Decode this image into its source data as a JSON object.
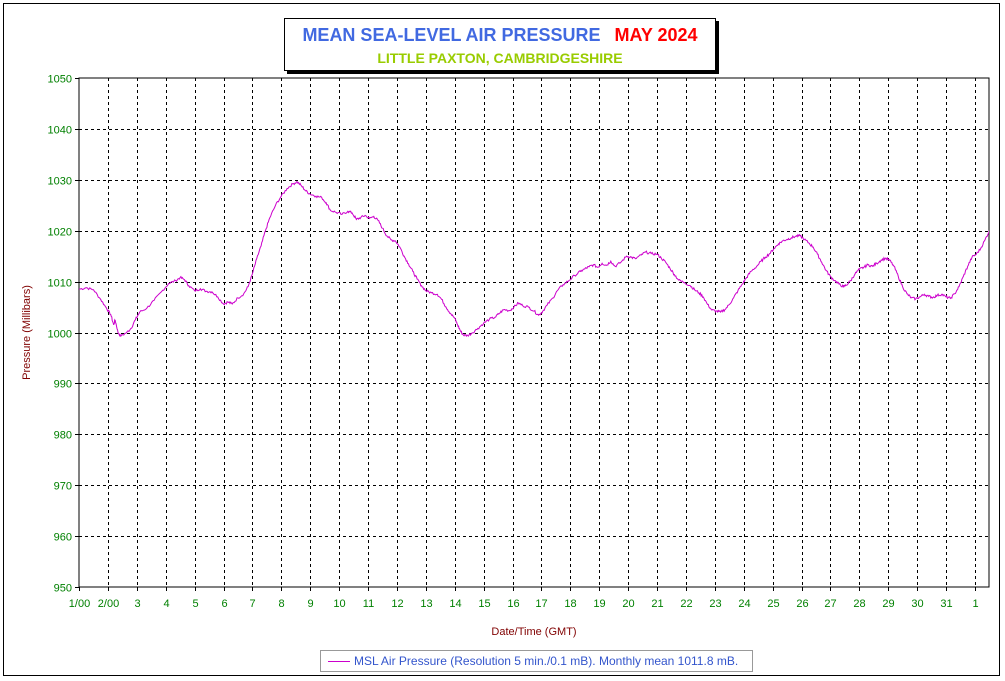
{
  "chart_data": {
    "type": "line",
    "title": "MEAN SEA-LEVEL AIR PRESSURE",
    "title_date": "MAY 2024",
    "subtitle": "LITTLE PAXTON, CAMBRIDGESHIRE",
    "xlabel": "Date/Time (GMT)",
    "ylabel": "Pressure (Millibars)",
    "xlim": [
      0,
      31.9
    ],
    "ylim": [
      950,
      1050
    ],
    "yticks": [
      950,
      960,
      970,
      980,
      990,
      1000,
      1010,
      1020,
      1030,
      1040,
      1050
    ],
    "x_tick_labels": [
      "1/00",
      "2/00",
      "3",
      "4",
      "5",
      "6",
      "7",
      "8",
      "9",
      "10",
      "11",
      "12",
      "13",
      "14",
      "15",
      "16",
      "17",
      "18",
      "19",
      "20",
      "21",
      "22",
      "23",
      "24",
      "25",
      "26",
      "27",
      "28",
      "29",
      "30",
      "31",
      "1"
    ],
    "grid": true,
    "legend_position": "bottom-center",
    "series": [
      {
        "name": "MSL Air Pressure (Resolution 5 min./0.1 mB). Monthly mean 1011.8 mB.",
        "color": "#cc00cc",
        "points": [
          [
            0.0,
            1008.5
          ],
          [
            0.25,
            1008.8
          ],
          [
            0.5,
            1008.4
          ],
          [
            0.75,
            1006.5
          ],
          [
            0.95,
            1004.8
          ],
          [
            1.1,
            1003.5
          ],
          [
            1.2,
            1001.5
          ],
          [
            1.25,
            1002.5
          ],
          [
            1.35,
            1000.0
          ],
          [
            1.45,
            999.3
          ],
          [
            1.65,
            1000.0
          ],
          [
            1.8,
            1000.8
          ],
          [
            1.95,
            1002.5
          ],
          [
            2.1,
            1004.0
          ],
          [
            2.35,
            1004.8
          ],
          [
            2.6,
            1006.3
          ],
          [
            2.85,
            1008.0
          ],
          [
            3.1,
            1009.6
          ],
          [
            3.35,
            1010.2
          ],
          [
            3.5,
            1010.8
          ],
          [
            3.65,
            1010.4
          ],
          [
            3.8,
            1009.2
          ],
          [
            4.0,
            1008.2
          ],
          [
            4.2,
            1008.6
          ],
          [
            4.4,
            1008.1
          ],
          [
            4.6,
            1008.0
          ],
          [
            4.8,
            1007.0
          ],
          [
            5.0,
            1005.6
          ],
          [
            5.15,
            1006.0
          ],
          [
            5.3,
            1005.6
          ],
          [
            5.5,
            1006.8
          ],
          [
            5.7,
            1007.6
          ],
          [
            5.85,
            1009.0
          ],
          [
            6.0,
            1011.5
          ],
          [
            6.15,
            1014.5
          ],
          [
            6.3,
            1017.0
          ],
          [
            6.45,
            1020.0
          ],
          [
            6.6,
            1022.5
          ],
          [
            6.8,
            1025.0
          ],
          [
            7.0,
            1026.8
          ],
          [
            7.2,
            1028.3
          ],
          [
            7.4,
            1029.2
          ],
          [
            7.55,
            1029.6
          ],
          [
            7.7,
            1028.8
          ],
          [
            7.85,
            1027.8
          ],
          [
            8.0,
            1027.2
          ],
          [
            8.2,
            1026.8
          ],
          [
            8.4,
            1026.5
          ],
          [
            8.55,
            1025.5
          ],
          [
            8.7,
            1024.0
          ],
          [
            8.9,
            1023.6
          ],
          [
            9.1,
            1023.2
          ],
          [
            9.3,
            1023.8
          ],
          [
            9.45,
            1023.5
          ],
          [
            9.6,
            1022.2
          ],
          [
            9.75,
            1022.6
          ],
          [
            9.9,
            1023.0
          ],
          [
            10.05,
            1022.4
          ],
          [
            10.2,
            1022.8
          ],
          [
            10.35,
            1022.0
          ],
          [
            10.5,
            1020.5
          ],
          [
            10.65,
            1019.0
          ],
          [
            10.8,
            1018.2
          ],
          [
            10.95,
            1018.0
          ],
          [
            11.1,
            1016.8
          ],
          [
            11.25,
            1015.0
          ],
          [
            11.4,
            1013.5
          ],
          [
            11.55,
            1012.0
          ],
          [
            11.7,
            1010.5
          ],
          [
            11.85,
            1009.2
          ],
          [
            12.0,
            1008.2
          ],
          [
            12.2,
            1007.8
          ],
          [
            12.4,
            1007.5
          ],
          [
            12.55,
            1006.5
          ],
          [
            12.7,
            1005.0
          ],
          [
            12.85,
            1003.8
          ],
          [
            13.0,
            1002.8
          ],
          [
            13.1,
            1001.5
          ],
          [
            13.2,
            1000.3
          ],
          [
            13.3,
            999.5
          ],
          [
            13.45,
            999.4
          ],
          [
            13.6,
            999.9
          ],
          [
            13.8,
            1000.8
          ],
          [
            14.0,
            1001.8
          ],
          [
            14.2,
            1002.6
          ],
          [
            14.4,
            1003.0
          ],
          [
            14.55,
            1003.8
          ],
          [
            14.7,
            1004.5
          ],
          [
            14.9,
            1004.3
          ],
          [
            15.05,
            1005.0
          ],
          [
            15.2,
            1005.8
          ],
          [
            15.35,
            1005.3
          ],
          [
            15.55,
            1005.0
          ],
          [
            15.75,
            1004.2
          ],
          [
            15.9,
            1003.4
          ],
          [
            16.05,
            1004.2
          ],
          [
            16.2,
            1005.4
          ],
          [
            16.4,
            1006.8
          ],
          [
            16.55,
            1008.2
          ],
          [
            16.75,
            1009.4
          ],
          [
            16.95,
            1010.2
          ],
          [
            17.15,
            1011.2
          ],
          [
            17.35,
            1012.0
          ],
          [
            17.5,
            1012.5
          ],
          [
            17.65,
            1012.9
          ],
          [
            17.8,
            1013.3
          ],
          [
            17.95,
            1012.8
          ],
          [
            18.1,
            1013.6
          ],
          [
            18.25,
            1013.2
          ],
          [
            18.4,
            1014.0
          ],
          [
            18.55,
            1013.0
          ],
          [
            18.75,
            1013.8
          ],
          [
            18.95,
            1015.0
          ],
          [
            19.1,
            1014.8
          ],
          [
            19.25,
            1014.5
          ],
          [
            19.45,
            1015.2
          ],
          [
            19.6,
            1015.8
          ],
          [
            19.8,
            1015.5
          ],
          [
            20.0,
            1015.4
          ],
          [
            20.15,
            1014.6
          ],
          [
            20.3,
            1013.8
          ],
          [
            20.45,
            1012.6
          ],
          [
            20.6,
            1011.4
          ],
          [
            20.75,
            1010.3
          ],
          [
            20.95,
            1009.8
          ],
          [
            21.15,
            1009.2
          ],
          [
            21.3,
            1008.4
          ],
          [
            21.45,
            1007.8
          ],
          [
            21.6,
            1007.0
          ],
          [
            21.75,
            1005.5
          ],
          [
            21.9,
            1004.4
          ],
          [
            22.05,
            1004.2
          ],
          [
            22.2,
            1004.0
          ],
          [
            22.35,
            1004.5
          ],
          [
            22.5,
            1005.5
          ],
          [
            22.65,
            1006.8
          ],
          [
            22.8,
            1008.2
          ],
          [
            22.95,
            1009.5
          ],
          [
            23.1,
            1010.8
          ],
          [
            23.25,
            1012.0
          ],
          [
            23.45,
            1013.0
          ],
          [
            23.6,
            1014.0
          ],
          [
            23.75,
            1014.8
          ],
          [
            23.9,
            1015.5
          ],
          [
            24.05,
            1016.5
          ],
          [
            24.2,
            1017.4
          ],
          [
            24.35,
            1018.0
          ],
          [
            24.5,
            1018.3
          ],
          [
            24.65,
            1018.6
          ],
          [
            24.8,
            1018.9
          ],
          [
            24.95,
            1019.0
          ],
          [
            25.1,
            1018.3
          ],
          [
            25.25,
            1017.6
          ],
          [
            25.4,
            1016.8
          ],
          [
            25.55,
            1015.4
          ],
          [
            25.7,
            1013.8
          ],
          [
            25.85,
            1012.2
          ],
          [
            26.0,
            1011.0
          ],
          [
            26.15,
            1010.2
          ],
          [
            26.3,
            1009.5
          ],
          [
            26.45,
            1009.0
          ],
          [
            26.55,
            1009.3
          ],
          [
            26.7,
            1010.2
          ],
          [
            26.85,
            1011.5
          ],
          [
            27.0,
            1012.4
          ],
          [
            27.15,
            1012.8
          ],
          [
            27.3,
            1013.3
          ],
          [
            27.45,
            1013.0
          ],
          [
            27.6,
            1013.6
          ],
          [
            27.75,
            1014.2
          ],
          [
            27.9,
            1014.6
          ],
          [
            28.05,
            1014.2
          ],
          [
            28.2,
            1013.0
          ],
          [
            28.35,
            1011.0
          ],
          [
            28.5,
            1009.0
          ],
          [
            28.65,
            1007.6
          ],
          [
            28.8,
            1006.8
          ],
          [
            28.95,
            1006.6
          ],
          [
            29.1,
            1007.0
          ],
          [
            29.25,
            1007.5
          ],
          [
            29.4,
            1007.1
          ],
          [
            29.55,
            1006.9
          ],
          [
            29.7,
            1007.3
          ],
          [
            29.85,
            1007.5
          ],
          [
            30.0,
            1007.0
          ],
          [
            30.15,
            1006.7
          ],
          [
            30.3,
            1007.6
          ],
          [
            30.45,
            1009.0
          ],
          [
            30.6,
            1011.0
          ],
          [
            30.75,
            1013.0
          ],
          [
            30.9,
            1014.8
          ],
          [
            31.05,
            1015.4
          ],
          [
            31.2,
            1016.5
          ],
          [
            31.35,
            1018.2
          ],
          [
            31.5,
            1020.0
          ],
          [
            31.65,
            1021.6
          ],
          [
            31.8,
            1023.0
          ],
          [
            31.9,
            1024.4
          ],
          [
            31.95,
            1023.8
          ],
          [
            32.05,
            1024.2
          ],
          [
            32.2,
            1025.3
          ]
        ]
      }
    ]
  }
}
